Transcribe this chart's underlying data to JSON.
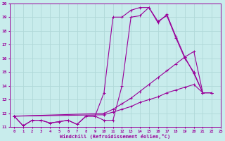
{
  "xlabel": "Windchill (Refroidissement éolien,°C)",
  "bg_color": "#c8ecec",
  "grid_color": "#b0d8d8",
  "line_color": "#990099",
  "xlim": [
    -0.5,
    23
  ],
  "ylim": [
    11,
    20
  ],
  "xticks": [
    0,
    1,
    2,
    3,
    4,
    5,
    6,
    7,
    8,
    9,
    10,
    11,
    12,
    13,
    14,
    15,
    16,
    17,
    18,
    19,
    20,
    21,
    22,
    23
  ],
  "yticks": [
    11,
    12,
    13,
    14,
    15,
    16,
    17,
    18,
    19,
    20
  ],
  "series": [
    {
      "x": [
        0,
        1,
        2,
        3,
        4,
        5,
        6,
        7,
        8,
        9,
        10,
        11,
        12,
        13,
        14,
        15,
        16,
        17,
        18,
        19,
        20,
        21,
        22
      ],
      "y": [
        11.8,
        11.1,
        11.5,
        11.5,
        11.3,
        11.4,
        11.5,
        11.2,
        11.8,
        11.8,
        11.5,
        11.5,
        14.0,
        19.0,
        19.1,
        19.7,
        18.6,
        19.2,
        17.6,
        16.1,
        14.9,
        13.5,
        13.5
      ]
    },
    {
      "x": [
        0,
        1,
        2,
        3,
        4,
        5,
        6,
        7,
        8,
        9,
        10,
        11,
        12,
        13,
        14,
        15,
        16,
        17,
        18,
        19,
        20,
        21,
        22
      ],
      "y": [
        11.8,
        11.1,
        11.5,
        11.5,
        11.3,
        11.4,
        11.5,
        11.2,
        11.8,
        11.8,
        13.5,
        19.0,
        19.0,
        19.5,
        19.7,
        19.7,
        18.7,
        19.1,
        17.5,
        16.0,
        15.0,
        13.5,
        13.5
      ]
    },
    {
      "x": [
        0,
        10,
        11,
        12,
        13,
        14,
        15,
        16,
        17,
        18,
        19,
        20,
        21,
        22
      ],
      "y": [
        11.8,
        12.0,
        12.3,
        12.7,
        13.1,
        13.6,
        14.1,
        14.6,
        15.1,
        15.6,
        16.1,
        16.5,
        13.5,
        13.5
      ]
    },
    {
      "x": [
        0,
        10,
        11,
        12,
        13,
        14,
        15,
        16,
        17,
        18,
        19,
        20,
        21,
        22
      ],
      "y": [
        11.8,
        11.9,
        12.1,
        12.3,
        12.5,
        12.8,
        13.0,
        13.2,
        13.5,
        13.7,
        13.9,
        14.1,
        13.5,
        13.5
      ]
    }
  ]
}
